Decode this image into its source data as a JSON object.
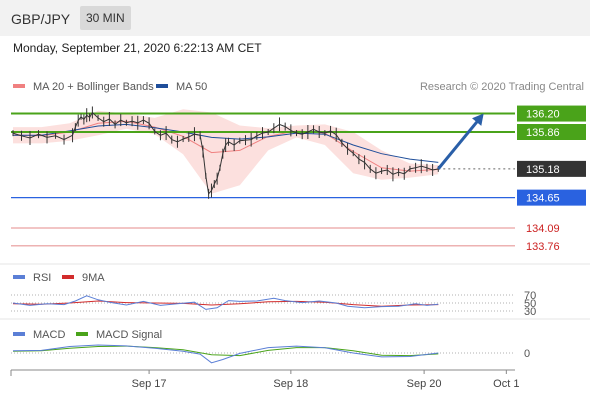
{
  "header": {
    "symbol": "GBP/JPY",
    "timeframe": "30 MIN"
  },
  "subheader": {
    "datetime": "Monday, September 21, 2020 6:22:13 AM CET"
  },
  "chart_data": {
    "type": "line",
    "attribution": "Research © 2020 Trading Central",
    "price_panel": {
      "legend": [
        {
          "name": "MA 20 + Bollinger Bands",
          "color": "#f08080"
        },
        {
          "name": "MA 50",
          "color": "#1f4e9a"
        }
      ],
      "ylim": [
        133.5,
        136.45
      ],
      "price": [
        [
          0,
          135.84
        ],
        [
          3,
          135.79
        ],
        [
          6,
          135.75
        ],
        [
          9,
          135.82
        ],
        [
          12,
          135.76
        ],
        [
          15,
          135.79
        ],
        [
          18,
          135.72
        ],
        [
          21,
          135.8
        ],
        [
          22,
          135.95
        ],
        [
          23,
          136.07
        ],
        [
          24,
          136.14
        ],
        [
          25,
          136.09
        ],
        [
          26,
          136.17
        ],
        [
          27,
          136.13
        ],
        [
          28,
          136.22
        ],
        [
          30,
          136.12
        ],
        [
          32,
          136.05
        ],
        [
          34,
          136.1
        ],
        [
          36,
          136.0
        ],
        [
          38,
          136.08
        ],
        [
          40,
          136.03
        ],
        [
          42,
          136.06
        ],
        [
          44,
          136.03
        ],
        [
          46,
          136.08
        ],
        [
          48,
          136.02
        ],
        [
          50,
          135.87
        ],
        [
          52,
          135.8
        ],
        [
          54,
          135.84
        ],
        [
          56,
          135.72
        ],
        [
          58,
          135.68
        ],
        [
          60,
          135.73
        ],
        [
          62,
          135.77
        ],
        [
          64,
          135.82
        ],
        [
          66,
          135.8
        ],
        [
          67,
          135.5
        ],
        [
          68,
          135.05
        ],
        [
          69,
          134.72
        ],
        [
          70,
          134.78
        ],
        [
          71,
          134.9
        ],
        [
          72,
          135.0
        ],
        [
          73,
          135.2
        ],
        [
          74,
          135.46
        ],
        [
          75,
          135.62
        ],
        [
          76,
          135.68
        ],
        [
          78,
          135.62
        ],
        [
          80,
          135.7
        ],
        [
          82,
          135.71
        ],
        [
          84,
          135.72
        ],
        [
          86,
          135.79
        ],
        [
          88,
          135.84
        ],
        [
          90,
          135.86
        ],
        [
          92,
          135.93
        ],
        [
          94,
          136.0
        ],
        [
          96,
          135.96
        ],
        [
          98,
          135.89
        ],
        [
          100,
          135.84
        ],
        [
          102,
          135.82
        ],
        [
          104,
          135.86
        ],
        [
          106,
          135.91
        ],
        [
          108,
          135.86
        ],
        [
          110,
          135.84
        ],
        [
          112,
          135.88
        ],
        [
          114,
          135.81
        ],
        [
          116,
          135.66
        ],
        [
          118,
          135.55
        ],
        [
          120,
          135.47
        ],
        [
          122,
          135.36
        ],
        [
          124,
          135.3
        ],
        [
          126,
          135.18
        ],
        [
          128,
          135.1
        ],
        [
          130,
          135.14
        ],
        [
          132,
          135.16
        ],
        [
          134,
          135.08
        ],
        [
          136,
          135.12
        ],
        [
          138,
          135.09
        ],
        [
          140,
          135.18
        ],
        [
          142,
          135.2
        ],
        [
          144,
          135.23
        ],
        [
          146,
          135.2
        ],
        [
          148,
          135.16
        ],
        [
          150,
          135.18
        ]
      ],
      "ma50": [
        [
          0,
          135.8
        ],
        [
          10,
          135.8
        ],
        [
          20,
          135.88
        ],
        [
          30,
          135.97
        ],
        [
          40,
          136.0
        ],
        [
          50,
          135.94
        ],
        [
          60,
          135.86
        ],
        [
          70,
          135.76
        ],
        [
          80,
          135.73
        ],
        [
          90,
          135.77
        ],
        [
          100,
          135.84
        ],
        [
          110,
          135.82
        ],
        [
          120,
          135.62
        ],
        [
          130,
          135.46
        ],
        [
          140,
          135.36
        ],
        [
          150,
          135.3
        ]
      ],
      "ma20": [
        [
          0,
          135.8
        ],
        [
          10,
          135.79
        ],
        [
          20,
          135.86
        ],
        [
          30,
          136.02
        ],
        [
          40,
          136.06
        ],
        [
          50,
          135.95
        ],
        [
          60,
          135.78
        ],
        [
          70,
          135.48
        ],
        [
          80,
          135.52
        ],
        [
          90,
          135.78
        ],
        [
          100,
          135.88
        ],
        [
          110,
          135.84
        ],
        [
          120,
          135.5
        ],
        [
          130,
          135.2
        ],
        [
          140,
          135.14
        ],
        [
          150,
          135.17
        ]
      ],
      "bb_upper": [
        [
          0,
          135.95
        ],
        [
          10,
          135.95
        ],
        [
          20,
          136.02
        ],
        [
          30,
          136.25
        ],
        [
          40,
          136.2
        ],
        [
          50,
          136.12
        ],
        [
          60,
          136.28
        ],
        [
          70,
          136.22
        ],
        [
          80,
          135.98
        ],
        [
          90,
          135.93
        ],
        [
          100,
          135.98
        ],
        [
          110,
          136.0
        ],
        [
          120,
          135.86
        ],
        [
          130,
          135.52
        ],
        [
          140,
          135.28
        ],
        [
          150,
          135.25
        ]
      ],
      "bb_lower": [
        [
          0,
          135.65
        ],
        [
          10,
          135.65
        ],
        [
          20,
          135.7
        ],
        [
          30,
          135.8
        ],
        [
          40,
          135.92
        ],
        [
          50,
          135.82
        ],
        [
          60,
          135.45
        ],
        [
          70,
          134.72
        ],
        [
          80,
          134.88
        ],
        [
          90,
          135.52
        ],
        [
          100,
          135.76
        ],
        [
          110,
          135.62
        ],
        [
          120,
          135.1
        ],
        [
          130,
          134.98
        ],
        [
          140,
          135.02
        ],
        [
          150,
          135.08
        ]
      ],
      "levels": [
        {
          "value": 136.2,
          "label": "136.20",
          "color": "#4aa31a",
          "style": "resistance"
        },
        {
          "value": 135.86,
          "label": "135.86",
          "color": "#4aa31a",
          "style": "resistance"
        },
        {
          "value": 135.18,
          "label": "135.18",
          "color": "#333333",
          "style": "current"
        },
        {
          "value": 134.65,
          "label": "134.65",
          "color": "#2a62e0",
          "style": "pivot"
        },
        {
          "value": 134.09,
          "label": "134.09",
          "color": "#cc2222",
          "style": "support"
        },
        {
          "value": 133.76,
          "label": "133.76",
          "color": "#cc2222",
          "style": "support"
        }
      ],
      "forecast_arrow": {
        "from": [
          150,
          135.18
        ],
        "to": [
          166,
          136.2
        ]
      }
    },
    "rsi_panel": {
      "legend": [
        {
          "name": "RSI",
          "color": "#5b7fd6"
        },
        {
          "name": "9MA",
          "color": "#d22c2c"
        }
      ],
      "levels": [
        70,
        50,
        30
      ],
      "ylim": [
        30,
        70
      ],
      "rsi": [
        [
          0,
          50
        ],
        [
          6,
          44
        ],
        [
          12,
          48
        ],
        [
          18,
          46
        ],
        [
          22,
          55
        ],
        [
          26,
          68
        ],
        [
          30,
          58
        ],
        [
          34,
          52
        ],
        [
          40,
          45
        ],
        [
          46,
          54
        ],
        [
          52,
          44
        ],
        [
          58,
          48
        ],
        [
          64,
          52
        ],
        [
          68,
          34
        ],
        [
          72,
          38
        ],
        [
          76,
          56
        ],
        [
          80,
          54
        ],
        [
          86,
          55
        ],
        [
          92,
          62
        ],
        [
          96,
          56
        ],
        [
          102,
          51
        ],
        [
          108,
          55
        ],
        [
          114,
          50
        ],
        [
          118,
          42
        ],
        [
          124,
          38
        ],
        [
          130,
          41
        ],
        [
          136,
          42
        ],
        [
          142,
          48
        ],
        [
          146,
          44
        ],
        [
          150,
          47
        ]
      ],
      "rsi_ma": [
        [
          0,
          48
        ],
        [
          10,
          47
        ],
        [
          20,
          50
        ],
        [
          30,
          55
        ],
        [
          40,
          51
        ],
        [
          50,
          50
        ],
        [
          60,
          49
        ],
        [
          70,
          45
        ],
        [
          80,
          48
        ],
        [
          90,
          53
        ],
        [
          100,
          54
        ],
        [
          110,
          52
        ],
        [
          120,
          46
        ],
        [
          130,
          42
        ],
        [
          140,
          45
        ],
        [
          150,
          46
        ]
      ]
    },
    "macd_panel": {
      "legend": [
        {
          "name": "MACD",
          "color": "#5b7fd6"
        },
        {
          "name": "MACD Signal",
          "color": "#4aa31a"
        }
      ],
      "zero_label": "0",
      "ylim": [
        -0.6,
        0.6
      ],
      "macd": [
        [
          0,
          0.1
        ],
        [
          10,
          0.12
        ],
        [
          20,
          0.3
        ],
        [
          30,
          0.37
        ],
        [
          40,
          0.33
        ],
        [
          50,
          0.22
        ],
        [
          60,
          0.08
        ],
        [
          66,
          -0.05
        ],
        [
          70,
          -0.45
        ],
        [
          74,
          -0.3
        ],
        [
          80,
          -0.02
        ],
        [
          90,
          0.25
        ],
        [
          100,
          0.32
        ],
        [
          110,
          0.24
        ],
        [
          120,
          0.0
        ],
        [
          130,
          -0.18
        ],
        [
          140,
          -0.16
        ],
        [
          150,
          0.0
        ]
      ],
      "signal": [
        [
          0,
          0.08
        ],
        [
          10,
          0.1
        ],
        [
          20,
          0.22
        ],
        [
          30,
          0.3
        ],
        [
          40,
          0.32
        ],
        [
          50,
          0.25
        ],
        [
          60,
          0.15
        ],
        [
          70,
          -0.08
        ],
        [
          80,
          -0.12
        ],
        [
          90,
          0.12
        ],
        [
          100,
          0.25
        ],
        [
          110,
          0.25
        ],
        [
          120,
          0.1
        ],
        [
          130,
          -0.1
        ],
        [
          140,
          -0.12
        ],
        [
          150,
          -0.04
        ]
      ]
    },
    "x_axis": {
      "ticks": [
        {
          "x": 48,
          "label": "Sep 17"
        },
        {
          "x": 98,
          "label": "Sep 18"
        },
        {
          "x": 145,
          "label": "Sep 20"
        },
        {
          "x": 174,
          "label": "Oct 1"
        }
      ],
      "xlim": [
        0,
        176
      ]
    }
  }
}
